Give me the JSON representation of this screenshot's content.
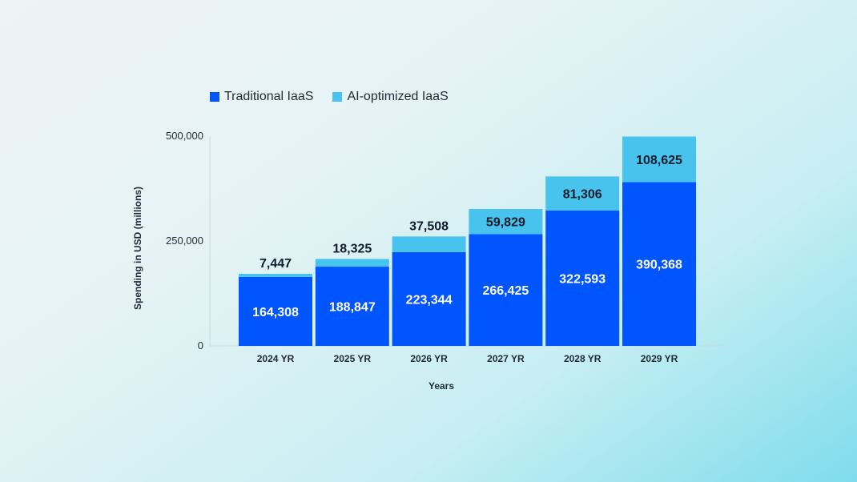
{
  "chart_data": {
    "type": "bar",
    "stacked": true,
    "categories": [
      "2024 YR",
      "2025 YR",
      "2026 YR",
      "2027 YR",
      "2028 YR",
      "2029 YR"
    ],
    "series": [
      {
        "name": "Traditional IaaS",
        "color": "#0055ff",
        "values": [
          164308,
          188847,
          223344,
          266425,
          322593,
          390368
        ]
      },
      {
        "name": "AI-optimized IaaS",
        "color": "#47c3ee",
        "values": [
          7447,
          18325,
          37508,
          59829,
          81306,
          108625
        ]
      }
    ],
    "value_labels": [
      [
        "164,308",
        "188,847",
        "223,344",
        "266,425",
        "322,593",
        "390,368"
      ],
      [
        "7,447",
        "18,325",
        "37,508",
        "59,829",
        "81,306",
        "108,625"
      ]
    ],
    "xlabel": "Years",
    "ylabel": "Spending in USD (millions)",
    "ylim": [
      0,
      500000
    ],
    "yticks": [
      0,
      250000,
      500000
    ],
    "ytick_labels": [
      "0",
      "250,000",
      "500,000"
    ],
    "legend_position": "top-left",
    "grid": false
  }
}
